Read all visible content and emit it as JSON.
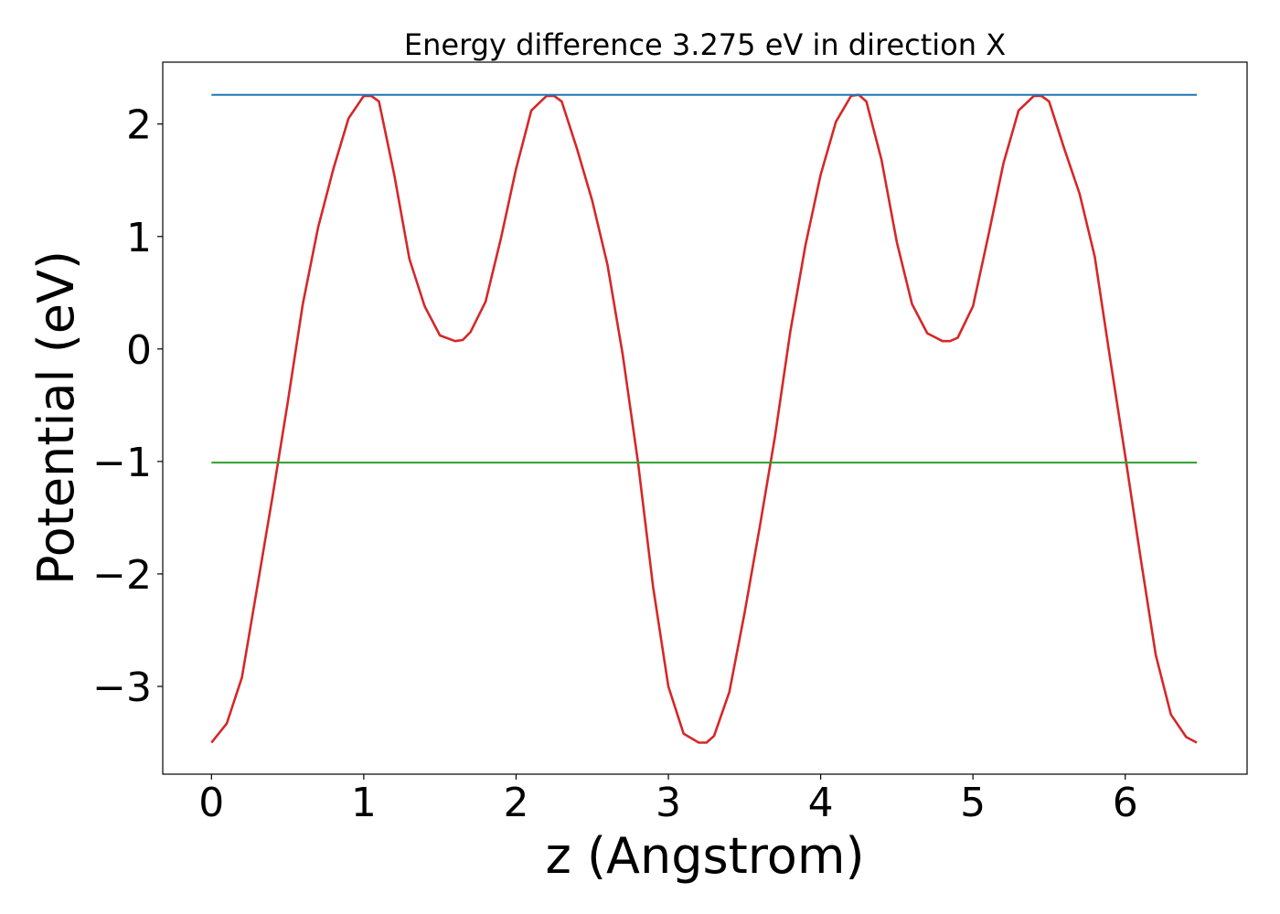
{
  "chart_data": {
    "type": "line",
    "title": "Energy difference 3.275 eV in direction X",
    "xlabel": "z (Angstrom)",
    "ylabel": "Potential (eV)",
    "xlim": [
      -0.32,
      6.8
    ],
    "ylim": [
      -3.78,
      2.55
    ],
    "xticks": [
      0,
      1,
      2,
      3,
      4,
      5,
      6
    ],
    "yticks": [
      -3,
      -2,
      -1,
      0,
      1,
      2
    ],
    "xtick_labels": [
      "0",
      "1",
      "2",
      "3",
      "4",
      "5",
      "6"
    ],
    "ytick_labels": [
      "−3",
      "−2",
      "−1",
      "0",
      "1",
      "2"
    ],
    "grid": false,
    "series": [
      {
        "color": "#d62728",
        "x": [
          0.0,
          0.1,
          0.2,
          0.3,
          0.4,
          0.5,
          0.6,
          0.7,
          0.8,
          0.9,
          1.0,
          1.05,
          1.1,
          1.2,
          1.3,
          1.4,
          1.5,
          1.6,
          1.65,
          1.7,
          1.8,
          1.9,
          2.0,
          2.1,
          2.2,
          2.25,
          2.3,
          2.4,
          2.5,
          2.6,
          2.7,
          2.8,
          2.9,
          3.0,
          3.1,
          3.2,
          3.25,
          3.3,
          3.4,
          3.5,
          3.6,
          3.7,
          3.8,
          3.9,
          4.0,
          4.1,
          4.2,
          4.25,
          4.3,
          4.4,
          4.5,
          4.6,
          4.7,
          4.8,
          4.85,
          4.9,
          5.0,
          5.1,
          5.2,
          5.3,
          5.4,
          5.45,
          5.5,
          5.6,
          5.7,
          5.8,
          5.9,
          6.0,
          6.1,
          6.2,
          6.3,
          6.4,
          6.47
        ],
        "y": [
          -3.5,
          -3.33,
          -2.92,
          -2.12,
          -1.32,
          -0.48,
          0.4,
          1.08,
          1.6,
          2.05,
          2.25,
          2.25,
          2.2,
          1.55,
          0.8,
          0.38,
          0.12,
          0.07,
          0.08,
          0.15,
          0.42,
          0.98,
          1.6,
          2.12,
          2.25,
          2.25,
          2.2,
          1.78,
          1.32,
          0.75,
          -0.05,
          -1.0,
          -2.12,
          -3.0,
          -3.42,
          -3.5,
          -3.5,
          -3.44,
          -3.05,
          -2.35,
          -1.58,
          -0.78,
          0.15,
          0.92,
          1.55,
          2.02,
          2.25,
          2.26,
          2.2,
          1.68,
          0.95,
          0.4,
          0.14,
          0.07,
          0.07,
          0.1,
          0.38,
          1.0,
          1.65,
          2.12,
          2.25,
          2.25,
          2.2,
          1.78,
          1.38,
          0.82,
          -0.08,
          -0.95,
          -1.85,
          -2.72,
          -3.25,
          -3.45,
          -3.5
        ]
      },
      {
        "color": "#1f77b4",
        "x": [
          0.0,
          6.47
        ],
        "y": [
          2.26,
          2.26
        ]
      },
      {
        "color": "#2ca02c",
        "x": [
          0.0,
          6.47
        ],
        "y": [
          -1.01,
          -1.01
        ]
      }
    ]
  }
}
